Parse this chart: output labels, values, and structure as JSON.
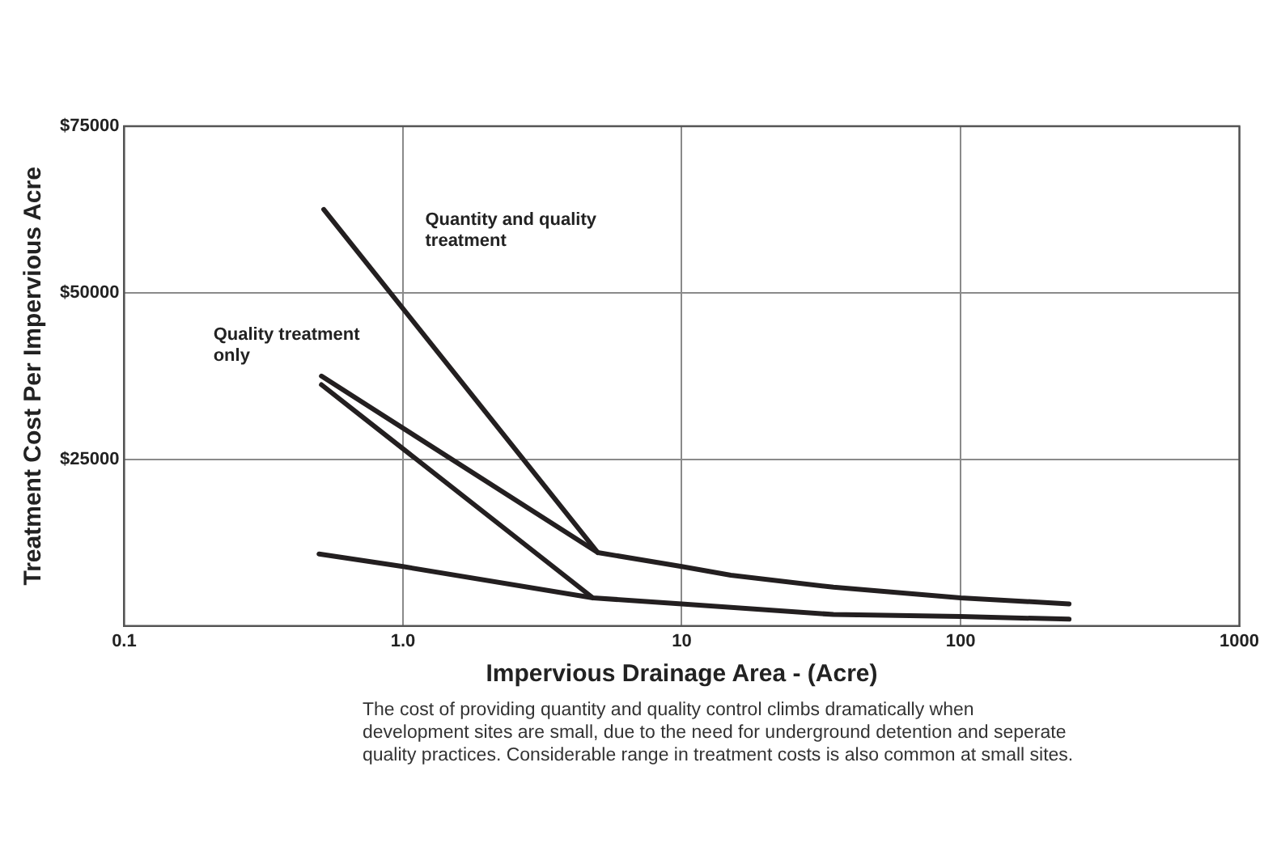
{
  "chart_data": {
    "type": "line",
    "xlabel": "Impervious Drainage Area - (Acre)",
    "ylabel": "Treatment Cost Per Impervious Acre",
    "log": "x",
    "xlim": [
      0.1,
      1000
    ],
    "xticks": [
      0.1,
      {
        "value": 1,
        "label": "1.0"
      },
      10,
      100,
      1000
    ],
    "ylim": [
      0,
      75000
    ],
    "yticks": [
      {
        "value": 25000,
        "label": "$25000"
      },
      {
        "value": 50000,
        "label": "$50000"
      },
      {
        "value": 75000,
        "label": "$75000"
      }
    ],
    "grid": true,
    "legend": false,
    "marker": "none",
    "line_style": "solid",
    "series": [
      {
        "color": "#231f20",
        "x": [
          0.52,
          5
        ],
        "values": [
          62500,
          11000
        ]
      },
      {
        "color": "#231f20",
        "x": [
          0.51,
          5,
          10,
          15,
          35,
          100,
          245
        ],
        "values": [
          37500,
          11000,
          8900,
          7600,
          5800,
          4200,
          3300
        ]
      },
      {
        "color": "#231f20",
        "x": [
          0.51,
          4.8
        ],
        "values": [
          36200,
          4200
        ]
      },
      {
        "color": "#231f20",
        "x": [
          0.5,
          1,
          4.8,
          10,
          35,
          100,
          245
        ],
        "values": [
          10800,
          8900,
          4200,
          3300,
          1700,
          1400,
          1000
        ]
      }
    ],
    "annotations": [
      "Quantity and quality treatment",
      "Quality treatment only",
      "The cost of providing quantity and quality control climbs dramatically when development sites are small, due to the need for underground detention and seperate quality practices. Considerable range in treatment costs is also common at small sites."
    ]
  }
}
